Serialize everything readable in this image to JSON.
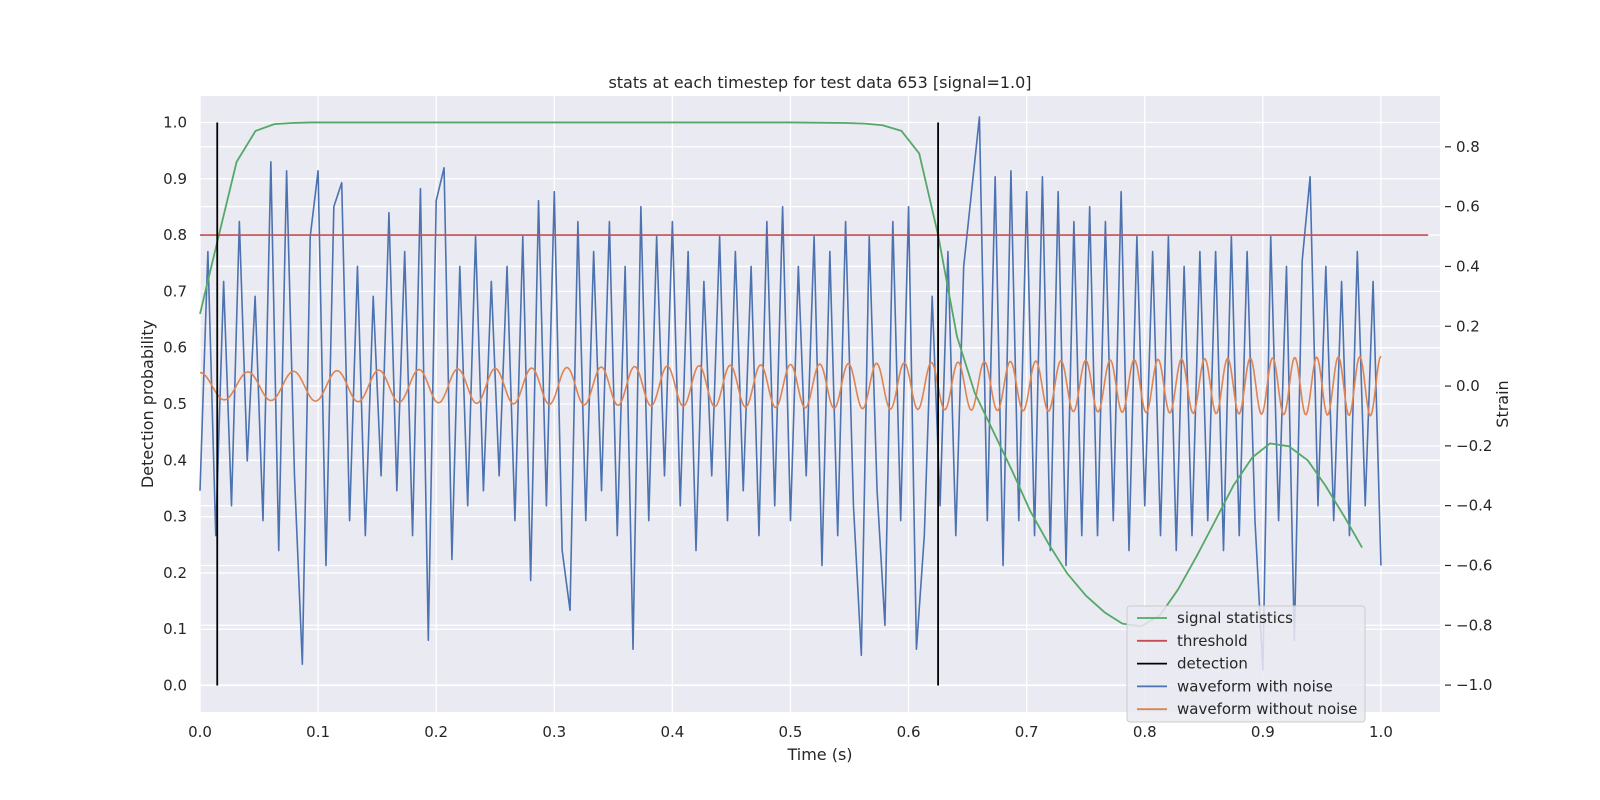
{
  "chart_data": {
    "type": "line",
    "title": "stats at each timestep for test data 653 [signal=1.0]",
    "xlabel": "Time (s)",
    "ylabel": "Detection probability",
    "y2label": "Strain",
    "xlim": [
      0.0,
      1.05
    ],
    "ylim": [
      -0.047,
      1.047
    ],
    "y2lim": [
      -1.09,
      0.97
    ],
    "grid": true,
    "legend_position": "lower-right",
    "x_ticks": [
      0.0,
      0.1,
      0.2,
      0.3,
      0.4,
      0.5,
      0.6,
      0.7,
      0.8,
      0.9,
      1.0
    ],
    "x_tick_labels": [
      "0.0",
      "0.1",
      "0.2",
      "0.3",
      "0.4",
      "0.5",
      "0.6",
      "0.7",
      "0.8",
      "0.9",
      "1.0"
    ],
    "y_ticks": [
      0.0,
      0.1,
      0.2,
      0.3,
      0.4,
      0.5,
      0.6,
      0.7,
      0.8,
      0.9,
      1.0
    ],
    "y_tick_labels": [
      "0.0",
      "0.1",
      "0.2",
      "0.3",
      "0.4",
      "0.5",
      "0.6",
      "0.7",
      "0.8",
      "0.9",
      "1.0"
    ],
    "y2_ticks": [
      0.8,
      0.6,
      0.4,
      0.2,
      0.0,
      -0.2,
      -0.4,
      -0.6,
      -0.8,
      -1.0
    ],
    "y2_tick_labels": [
      "0.8",
      "0.6",
      "0.4",
      "0.2",
      "0.0",
      "−0.2",
      "−0.4",
      "−0.6",
      "−0.8",
      "−1.0"
    ],
    "series": [
      {
        "name": "signal statistics",
        "axis": "left",
        "color": "#55a868",
        "x": [
          0.0,
          0.016,
          0.031,
          0.047,
          0.063,
          0.078,
          0.094,
          0.109,
          0.125,
          0.2,
          0.3,
          0.4,
          0.5,
          0.547,
          0.563,
          0.578,
          0.594,
          0.609,
          0.625,
          0.641,
          0.656,
          0.672,
          0.688,
          0.703,
          0.719,
          0.734,
          0.75,
          0.766,
          0.781,
          0.797,
          0.813,
          0.828,
          0.844,
          0.859,
          0.875,
          0.891,
          0.906,
          0.922,
          0.938,
          0.953,
          0.969,
          0.984
        ],
        "y": [
          0.66,
          0.8,
          0.93,
          0.985,
          0.997,
          0.999,
          1.0,
          1.0,
          1.0,
          1.0,
          1.0,
          1.0,
          1.0,
          0.999,
          0.998,
          0.995,
          0.985,
          0.945,
          0.8,
          0.62,
          0.52,
          0.45,
          0.38,
          0.31,
          0.25,
          0.2,
          0.16,
          0.13,
          0.11,
          0.105,
          0.125,
          0.17,
          0.23,
          0.29,
          0.355,
          0.405,
          0.43,
          0.425,
          0.4,
          0.355,
          0.3,
          0.245
        ]
      },
      {
        "name": "threshold",
        "axis": "left",
        "color": "#c44e52",
        "x": [
          0.0,
          1.04
        ],
        "y": [
          0.8,
          0.8
        ]
      },
      {
        "name": "detection",
        "axis": "left",
        "color": "#000000",
        "type": "vlines",
        "x": [
          0.0146,
          0.625
        ],
        "ymin": 0.0,
        "ymax": 1.0
      },
      {
        "name": "waveform with noise",
        "axis": "right",
        "color": "#4c72b0",
        "x": [
          0.0,
          0.00667,
          0.01333,
          0.02,
          0.02667,
          0.03333,
          0.04,
          0.04667,
          0.05333,
          0.06,
          0.06667,
          0.07333,
          0.08,
          0.08667,
          0.09333,
          0.1,
          0.10667,
          0.11333,
          0.12,
          0.12667,
          0.13333,
          0.14,
          0.14667,
          0.15333,
          0.16,
          0.16667,
          0.17333,
          0.18,
          0.18667,
          0.19333,
          0.2,
          0.20667,
          0.21333,
          0.22,
          0.22667,
          0.23333,
          0.24,
          0.24667,
          0.25333,
          0.26,
          0.26667,
          0.27333,
          0.28,
          0.28667,
          0.29333,
          0.3,
          0.30667,
          0.31333,
          0.32,
          0.32667,
          0.33333,
          0.34,
          0.34667,
          0.35333,
          0.36,
          0.36667,
          0.37333,
          0.38,
          0.38667,
          0.39333,
          0.4,
          0.40667,
          0.41333,
          0.42,
          0.42667,
          0.43333,
          0.44,
          0.44667,
          0.45333,
          0.46,
          0.46667,
          0.47333,
          0.48,
          0.48667,
          0.49333,
          0.5,
          0.50667,
          0.51333,
          0.52,
          0.52667,
          0.53333,
          0.54,
          0.54667,
          0.55333,
          0.56,
          0.56667,
          0.57333,
          0.58,
          0.58667,
          0.59333,
          0.6,
          0.60667,
          0.61333,
          0.62,
          0.62667,
          0.63333,
          0.64,
          0.64667,
          0.65333,
          0.66,
          0.66667,
          0.67333,
          0.68,
          0.68667,
          0.69333,
          0.7,
          0.70667,
          0.71333,
          0.72,
          0.72667,
          0.73333,
          0.74,
          0.74667,
          0.75333,
          0.76,
          0.76667,
          0.77333,
          0.78,
          0.78667,
          0.79333,
          0.8,
          0.80667,
          0.81333,
          0.82,
          0.82667,
          0.83333,
          0.84,
          0.84667,
          0.85333,
          0.86,
          0.86667,
          0.87333,
          0.88,
          0.88667,
          0.89333,
          0.9,
          0.90667,
          0.91333,
          0.92,
          0.92667,
          0.93333,
          0.94,
          0.94667,
          0.95333,
          0.96,
          0.96667,
          0.97333,
          0.98,
          0.98667,
          0.99333,
          1.0
        ],
        "y": [
          -0.35,
          0.45,
          -0.5,
          0.35,
          -0.4,
          0.55,
          -0.25,
          0.3,
          -0.45,
          0.75,
          -0.55,
          0.72,
          -0.3,
          -0.93,
          0.5,
          0.72,
          -0.6,
          0.6,
          0.68,
          -0.45,
          0.4,
          -0.5,
          0.3,
          -0.3,
          0.58,
          -0.35,
          0.45,
          -0.5,
          0.66,
          -0.85,
          0.62,
          0.73,
          -0.58,
          0.4,
          -0.4,
          0.5,
          -0.35,
          0.35,
          -0.3,
          0.4,
          -0.45,
          0.5,
          -0.65,
          0.62,
          -0.4,
          0.65,
          -0.55,
          -0.75,
          0.55,
          -0.45,
          0.45,
          -0.35,
          0.55,
          -0.5,
          0.4,
          -0.88,
          0.6,
          -0.45,
          0.5,
          -0.3,
          0.55,
          -0.4,
          0.45,
          -0.55,
          0.35,
          -0.3,
          0.5,
          -0.45,
          0.45,
          -0.35,
          0.4,
          -0.5,
          0.55,
          -0.4,
          0.6,
          -0.45,
          0.4,
          -0.3,
          0.5,
          -0.6,
          0.45,
          -0.5,
          0.55,
          -0.4,
          -0.9,
          0.5,
          -0.35,
          -0.8,
          0.55,
          -0.45,
          0.6,
          -0.88,
          -0.5,
          0.3,
          -0.4,
          0.45,
          -0.5,
          0.4,
          0.65,
          0.9,
          -0.45,
          0.7,
          -0.6,
          0.72,
          -0.45,
          0.65,
          -0.5,
          0.7,
          -0.55,
          0.65,
          -0.6,
          0.55,
          -0.5,
          0.6,
          -0.5,
          0.55,
          -0.45,
          0.65,
          -0.55,
          0.5,
          -0.4,
          0.45,
          -0.5,
          0.5,
          -0.55,
          0.4,
          -0.5,
          0.45,
          -0.45,
          0.45,
          -0.55,
          0.5,
          -0.5,
          0.45,
          -0.45,
          -0.95,
          0.5,
          -0.45,
          0.4,
          -0.85,
          0.42,
          0.7,
          -0.4,
          0.4,
          -0.45,
          0.35,
          -0.5,
          0.45,
          -0.4,
          0.35,
          -0.6
        ]
      },
      {
        "name": "waveform without noise",
        "axis": "right",
        "color": "#dd8452",
        "x_start": 0.0,
        "x_end": 1.0,
        "amplitude_start": 0.045,
        "amplitude_end": 0.1,
        "cycles_per_second_start": 24.0,
        "cycles_per_second_end": 56.0
      }
    ]
  }
}
